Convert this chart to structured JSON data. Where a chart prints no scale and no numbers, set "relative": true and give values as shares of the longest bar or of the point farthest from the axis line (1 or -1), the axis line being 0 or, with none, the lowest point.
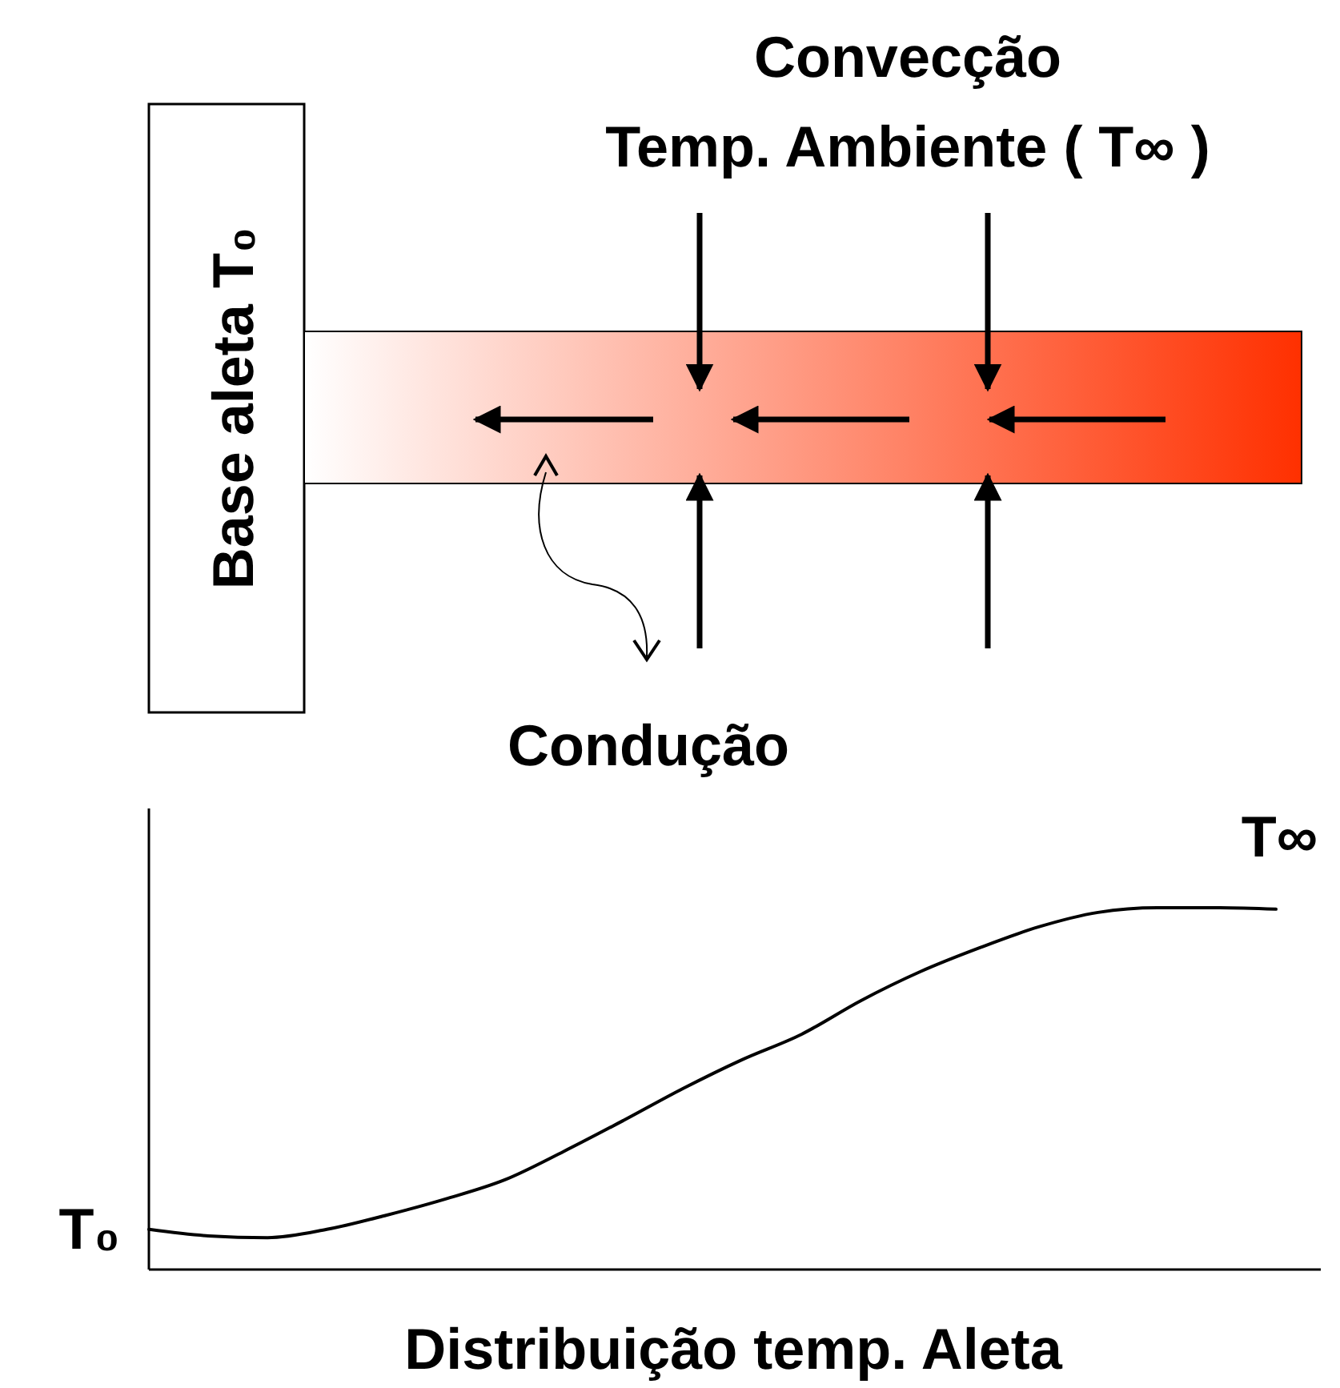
{
  "chart_data": {
    "type": "line",
    "relative": true,
    "xlabel": "Distribuição temp. Aleta",
    "categories": [
      null,
      null,
      null,
      null,
      null,
      null,
      null,
      null,
      null,
      null,
      null,
      null,
      null,
      null,
      null,
      null,
      null,
      null,
      null,
      null
    ],
    "series": [
      {
        "color": "#000000",
        "values": [
          0.111,
          0.093,
          0.088,
          0.111,
          0.15,
          0.195,
          0.248,
          0.327,
          0.412,
          0.5,
          0.58,
          0.65,
          0.743,
          0.823,
          0.889,
          0.947,
          0.987,
          1,
          1,
          0.996
        ]
      }
    ],
    "annotations": [
      "Convecção",
      "Temp. Ambiente ( T∞ )",
      "Base aleta T₀",
      "Condução",
      "T₀",
      "T∞"
    ]
  }
}
